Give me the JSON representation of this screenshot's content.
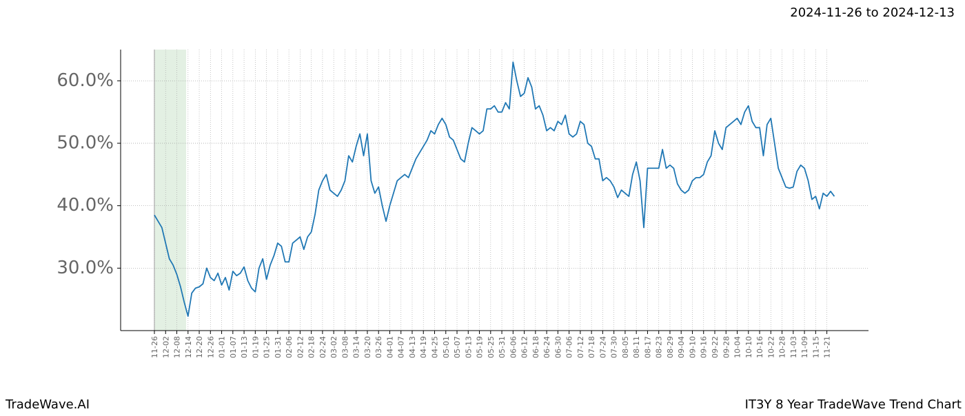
{
  "chart_data": {
    "type": "line",
    "title": "2024-11-26 to 2024-12-13",
    "footer_left": "TradeWave.AI",
    "footer_right": "IT3Y 8 Year TradeWave Trend Chart",
    "color": "#1f77b4",
    "shade_color": "#e3f0e3",
    "shaded_span": [
      0,
      8.5
    ],
    "grid": true,
    "ylim": [
      20,
      65
    ],
    "yticks": [
      {
        "value": 30,
        "label": "30.0%"
      },
      {
        "value": 40,
        "label": "40.0%"
      },
      {
        "value": 50,
        "label": "50.0%"
      },
      {
        "value": 60,
        "label": "60.0%"
      }
    ],
    "categories": [
      "11-26",
      null,
      null,
      "12-02",
      null,
      null,
      "12-08",
      null,
      null,
      "12-14",
      null,
      null,
      "12-20",
      null,
      null,
      "12-26",
      null,
      null,
      "01-01",
      null,
      null,
      "01-07",
      null,
      null,
      "01-13",
      null,
      null,
      "01-19",
      null,
      null,
      "01-25",
      null,
      null,
      "01-31",
      null,
      null,
      "02-06",
      null,
      null,
      "02-12",
      null,
      null,
      "02-18",
      null,
      null,
      "02-24",
      null,
      null,
      "03-02",
      null,
      null,
      "03-08",
      null,
      null,
      "03-14",
      null,
      null,
      "03-20",
      null,
      null,
      "03-26",
      null,
      null,
      "04-01",
      null,
      null,
      "04-07",
      null,
      null,
      "04-13",
      null,
      null,
      "04-19",
      null,
      null,
      "04-25",
      null,
      null,
      "05-01",
      null,
      null,
      "05-07",
      null,
      null,
      "05-13",
      null,
      null,
      "05-19",
      null,
      null,
      "05-25",
      null,
      null,
      "05-31",
      null,
      null,
      "06-06",
      null,
      null,
      "06-12",
      null,
      null,
      "06-18",
      null,
      null,
      "06-24",
      null,
      null,
      "06-30",
      null,
      null,
      "07-06",
      null,
      null,
      "07-12",
      null,
      null,
      "07-18",
      null,
      null,
      "07-24",
      null,
      null,
      "07-30",
      null,
      null,
      "08-05",
      null,
      null,
      "08-11",
      null,
      null,
      "08-17",
      null,
      null,
      "08-23",
      null,
      null,
      "08-29",
      null,
      null,
      "09-04",
      null,
      null,
      "09-10",
      null,
      null,
      "09-16",
      null,
      null,
      "09-22",
      null,
      null,
      "09-28",
      null,
      null,
      "10-04",
      null,
      null,
      "10-10",
      null,
      null,
      "10-16",
      null,
      null,
      "10-22",
      null,
      null,
      "10-28",
      null,
      null,
      "11-03",
      null,
      null,
      "11-09",
      null,
      null,
      "11-15",
      null,
      null,
      "11-21",
      null,
      null
    ],
    "values": [
      38.5,
      37.5,
      36.5,
      34,
      31.5,
      30.5,
      29,
      27,
      24.5,
      22.3,
      26,
      26.8,
      27,
      27.5,
      30,
      28.5,
      28,
      29.2,
      27.3,
      28.5,
      26.5,
      29.5,
      28.8,
      29.2,
      30.2,
      28,
      26.8,
      26.2,
      30,
      31.5,
      28.2,
      30.5,
      32,
      34,
      33.5,
      31,
      31,
      34,
      34.5,
      35,
      33,
      35,
      35.8,
      38.6,
      42.5,
      44,
      45,
      42.5,
      42,
      41.5,
      42.5,
      44,
      48,
      47,
      49.5,
      51.5,
      48,
      51.5,
      44,
      42,
      43,
      40,
      37.5,
      40,
      42,
      44,
      44.5,
      45,
      44.5,
      46,
      47.5,
      48.5,
      49.5,
      50.5,
      52,
      51.5,
      53,
      54,
      53,
      51,
      50.5,
      49,
      47.5,
      47,
      50,
      52.5,
      52,
      51.5,
      52,
      55.5,
      55.5,
      56,
      55,
      55,
      56.5,
      55.5,
      63,
      60,
      57.5,
      58,
      60.5,
      59,
      55.5,
      56,
      54.5,
      52,
      52.5,
      52,
      53.5,
      53,
      54.5,
      51.5,
      51,
      51.5,
      53.5,
      53,
      50,
      49.5,
      47.5,
      47.5,
      44,
      44.5,
      44,
      43,
      41.3,
      42.5,
      42,
      41.5,
      45,
      47,
      44,
      36.5,
      46,
      46,
      46,
      46,
      49,
      46,
      46.5,
      46,
      43.5,
      42.5,
      42,
      42.5,
      44,
      44.5,
      44.5,
      45,
      47,
      48,
      52,
      50,
      49,
      52.5,
      53,
      53.5,
      54,
      53,
      55,
      56,
      53.5,
      52.5,
      52.5,
      48,
      53,
      54,
      50,
      46,
      44.5,
      43,
      42.8,
      43,
      45.5,
      46.5,
      46,
      44,
      41,
      41.5,
      39.5,
      42,
      41.5,
      42.3,
      41.5
    ]
  }
}
